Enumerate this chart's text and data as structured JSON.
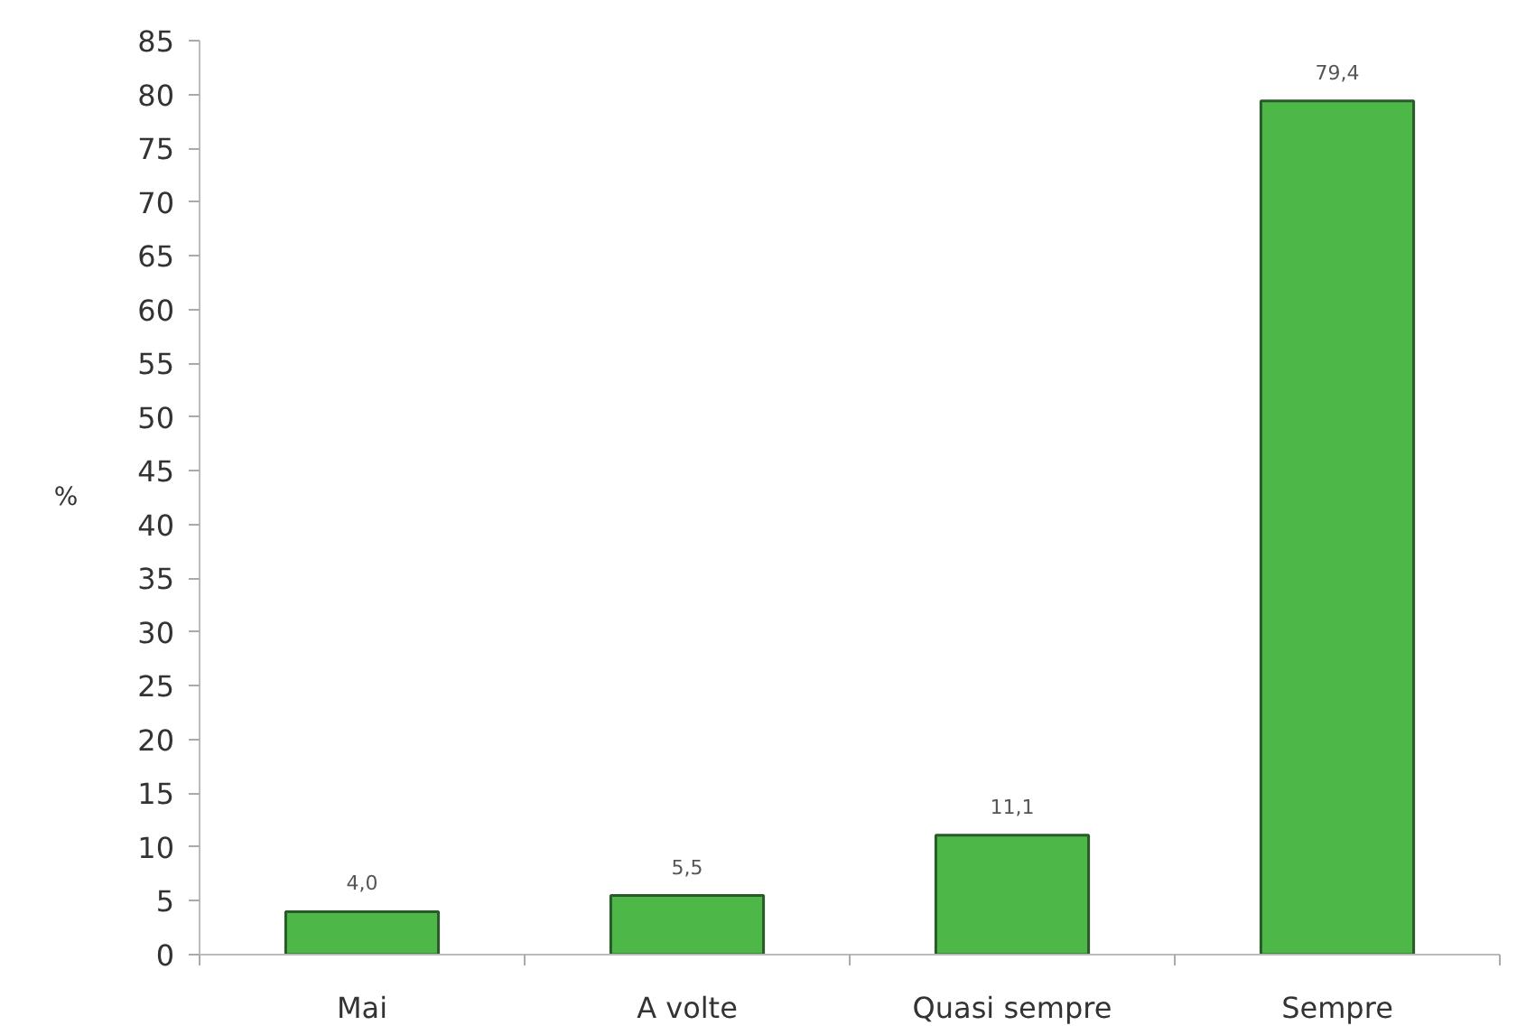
{
  "chart_data": {
    "type": "bar",
    "ylabel": "%",
    "categories": [
      "Mai",
      "A volte",
      "Quasi sempre",
      "Sempre"
    ],
    "values": [
      4.0,
      5.5,
      11.1,
      79.4
    ],
    "value_labels": [
      "4,0",
      "5,5",
      "11,1",
      "79,4"
    ],
    "color": "#4db848",
    "ylim": [
      0,
      85
    ],
    "yticks": [
      0,
      5,
      10,
      15,
      20,
      25,
      30,
      35,
      40,
      45,
      50,
      55,
      60,
      65,
      70,
      75,
      80,
      85
    ]
  }
}
